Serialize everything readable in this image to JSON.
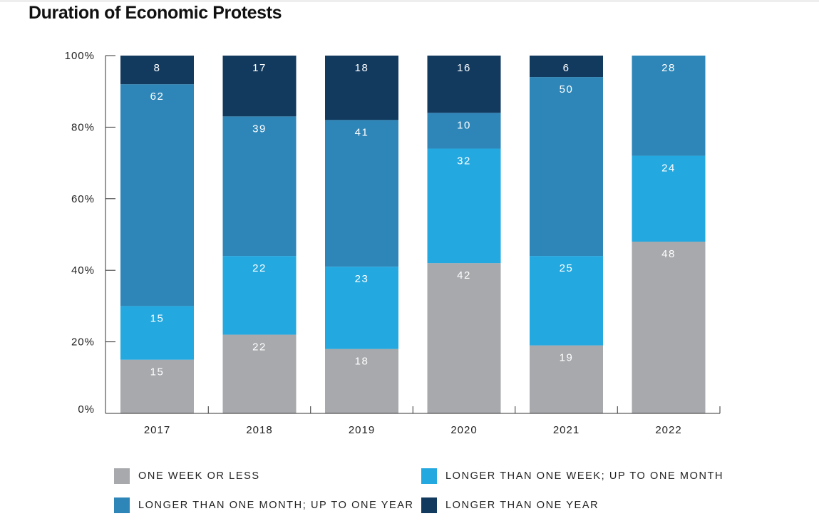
{
  "chart_data": {
    "type": "bar",
    "stacked": true,
    "title": "Duration of Economic Protests",
    "categories": [
      "2017",
      "2018",
      "2019",
      "2020",
      "2021",
      "2022"
    ],
    "series": [
      {
        "name": "ONE WEEK OR LESS",
        "color": "#a7a9ac",
        "values": [
          15,
          22,
          18,
          42,
          19,
          48
        ]
      },
      {
        "name": "LONGER THAN ONE WEEK; UP TO ONE MONTH",
        "color": "#23a8e0",
        "values": [
          15,
          22,
          23,
          32,
          25,
          24
        ]
      },
      {
        "name": "LONGER THAN ONE MONTH; UP TO ONE YEAR",
        "color": "#2e86b8",
        "values": [
          62,
          39,
          41,
          10,
          50,
          28
        ]
      },
      {
        "name": "LONGER THAN ONE YEAR",
        "color": "#123a5f",
        "values": [
          8,
          17,
          18,
          16,
          6,
          null
        ]
      }
    ],
    "ylim": [
      0,
      100
    ],
    "yticks": [
      "0%",
      "20%",
      "40%",
      "60%",
      "80%",
      "100%"
    ],
    "xlabel": "",
    "ylabel": "",
    "grid": false,
    "legend_position": "bottom"
  }
}
